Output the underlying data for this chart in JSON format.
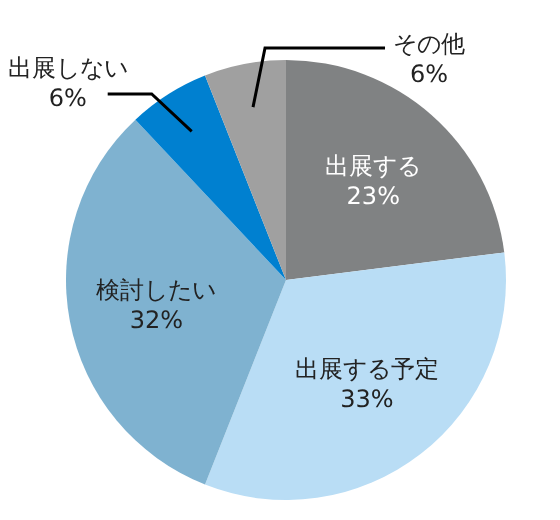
{
  "chart_data": {
    "type": "pie",
    "categories": [
      "出展する",
      "出展する予定",
      "検討したい",
      "出展しない",
      "その他"
    ],
    "values": [
      23,
      33,
      32,
      6,
      6
    ],
    "value_labels": [
      "23%",
      "33%",
      "32%",
      "6%",
      "6%"
    ],
    "colors": [
      "#808283",
      "#b9ddf5",
      "#7fb2d0",
      "#0080d0",
      "#a0a0a0"
    ]
  }
}
